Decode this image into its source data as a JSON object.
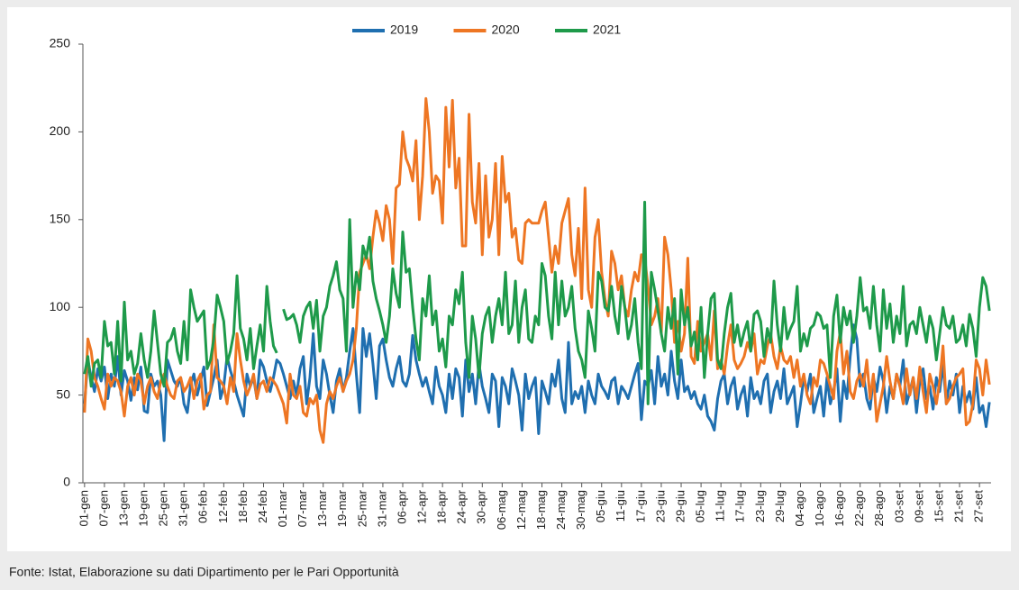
{
  "chart_data": {
    "type": "line",
    "source": "Fonte: Istat, Elaborazione su dati Dipartimento per le Pari Opportunità",
    "legend": "top",
    "grid": false,
    "ylim": [
      0,
      250
    ],
    "yticks": [
      0,
      50,
      100,
      150,
      200,
      250
    ],
    "categories": [
      "01-gen",
      null,
      null,
      null,
      null,
      null,
      "07-gen",
      null,
      null,
      null,
      null,
      null,
      "13-gen",
      null,
      null,
      null,
      null,
      null,
      "19-gen",
      null,
      null,
      null,
      null,
      null,
      "25-gen",
      null,
      null,
      null,
      null,
      null,
      "31-gen",
      null,
      null,
      null,
      null,
      null,
      "06-feb",
      null,
      null,
      null,
      null,
      null,
      "12-feb",
      null,
      null,
      null,
      null,
      null,
      "18-feb",
      null,
      null,
      null,
      null,
      null,
      "24-feb",
      null,
      null,
      null,
      null,
      null,
      "01-mar",
      null,
      null,
      null,
      null,
      null,
      "07-mar",
      null,
      null,
      null,
      null,
      null,
      "13-mar",
      null,
      null,
      null,
      null,
      null,
      "19-mar",
      null,
      null,
      null,
      null,
      null,
      "25-mar",
      null,
      null,
      null,
      null,
      null,
      "31-mar",
      null,
      null,
      null,
      null,
      null,
      "06-apr",
      null,
      null,
      null,
      null,
      null,
      "12-apr",
      null,
      null,
      null,
      null,
      null,
      "18-apr",
      null,
      null,
      null,
      null,
      null,
      "24-apr",
      null,
      null,
      null,
      null,
      null,
      "30-apr",
      null,
      null,
      null,
      null,
      null,
      "06-mag",
      null,
      null,
      null,
      null,
      null,
      "12-mag",
      null,
      null,
      null,
      null,
      null,
      "18-mag",
      null,
      null,
      null,
      null,
      null,
      "24-mag",
      null,
      null,
      null,
      null,
      null,
      "30-mag",
      null,
      null,
      null,
      null,
      null,
      "05-giu",
      null,
      null,
      null,
      null,
      null,
      "11-giu",
      null,
      null,
      null,
      null,
      null,
      "17-giu",
      null,
      null,
      null,
      null,
      null,
      "23-giu",
      null,
      null,
      null,
      null,
      null,
      "29-giu",
      null,
      null,
      null,
      null,
      null,
      "05-lug",
      null,
      null,
      null,
      null,
      null,
      "11-lug",
      null,
      null,
      null,
      null,
      null,
      "17-lug",
      null,
      null,
      null,
      null,
      null,
      "23-lug",
      null,
      null,
      null,
      null,
      null,
      "29-lug",
      null,
      null,
      null,
      null,
      null,
      "04-ago",
      null,
      null,
      null,
      null,
      null,
      "10-ago",
      null,
      null,
      null,
      null,
      null,
      "16-ago",
      null,
      null,
      null,
      null,
      null,
      "22-ago",
      null,
      null,
      null,
      null,
      null,
      "28-ago",
      null,
      null,
      null,
      null,
      null,
      "03-set",
      null,
      null,
      null,
      null,
      null,
      "09-set",
      null,
      null,
      null,
      null,
      null,
      "15-set",
      null,
      null,
      null,
      null,
      null,
      "21-set",
      null,
      null,
      null,
      null,
      null,
      "27-set",
      null,
      null,
      null
    ],
    "series": [
      {
        "name": "2019",
        "color": "#1f6fb0",
        "values": [
          45,
          70,
          60,
          52,
          65,
          58,
          66,
          48,
          62,
          55,
          72,
          50,
          64,
          58,
          47,
          60,
          53,
          66,
          41,
          40,
          62,
          55,
          58,
          50,
          24,
          70,
          64,
          58,
          55,
          60,
          45,
          40,
          56,
          62,
          50,
          58,
          66,
          44,
          52,
          60,
          70,
          48,
          55,
          72,
          64,
          58,
          50,
          44,
          38,
          62,
          55,
          60,
          48,
          70,
          66,
          58,
          52,
          60,
          70,
          68,
          62,
          55,
          48,
          58,
          50,
          65,
          72,
          45,
          60,
          85,
          55,
          48,
          70,
          62,
          50,
          40,
          58,
          65,
          52,
          60,
          75,
          88,
          62,
          40,
          88,
          72,
          85,
          68,
          48,
          78,
          82,
          70,
          60,
          55,
          65,
          72,
          58,
          55,
          62,
          84,
          70,
          62,
          55,
          60,
          52,
          45,
          66,
          55,
          50,
          40,
          62,
          48,
          65,
          60,
          38,
          70,
          52,
          62,
          45,
          68,
          55,
          48,
          40,
          62,
          58,
          32,
          60,
          55,
          45,
          65,
          58,
          50,
          30,
          62,
          48,
          55,
          60,
          28,
          58,
          52,
          45,
          62,
          55,
          70,
          48,
          40,
          80,
          45,
          52,
          48,
          55,
          40,
          58,
          50,
          45,
          62,
          55,
          52,
          48,
          58,
          60,
          45,
          55,
          52,
          48,
          55,
          62,
          68,
          36,
          58,
          55,
          64,
          45,
          72,
          55,
          62,
          50,
          75,
          58,
          48,
          70,
          52,
          55,
          48,
          52,
          45,
          42,
          50,
          38,
          35,
          30,
          48,
          58,
          62,
          45,
          55,
          60,
          42,
          50,
          55,
          38,
          60,
          48,
          52,
          45,
          58,
          62,
          40,
          52,
          58,
          48,
          65,
          45,
          50,
          55,
          32,
          45,
          60,
          52,
          62,
          40,
          48,
          55,
          38,
          60,
          45,
          52,
          65,
          35,
          58,
          48,
          72,
          90,
          82,
          55,
          62,
          48,
          42,
          60,
          52,
          66,
          58,
          40,
          55,
          48,
          62,
          55,
          70,
          45,
          52,
          60,
          40,
          58,
          65,
          48,
          55,
          42,
          60,
          52,
          68,
          45,
          58,
          50,
          62,
          40,
          55,
          46,
          52,
          42,
          60,
          40,
          44,
          32,
          46
        ]
      },
      {
        "name": "2020",
        "color": "#ee7623",
        "values": [
          40,
          82,
          75,
          60,
          55,
          48,
          42,
          62,
          55,
          60,
          58,
          52,
          38,
          55,
          60,
          50,
          62,
          58,
          45,
          55,
          60,
          52,
          48,
          58,
          62,
          55,
          50,
          48,
          58,
          60,
          52,
          55,
          60,
          48,
          58,
          62,
          42,
          50,
          52,
          90,
          60,
          58,
          55,
          45,
          60,
          52,
          85,
          70,
          58,
          50,
          55,
          62,
          48,
          56,
          58,
          52,
          60,
          58,
          55,
          50,
          45,
          34,
          62,
          50,
          48,
          55,
          40,
          38,
          48,
          45,
          50,
          30,
          23,
          45,
          52,
          48,
          55,
          60,
          52,
          58,
          62,
          70,
          88,
          120,
          125,
          130,
          122,
          140,
          155,
          148,
          138,
          158,
          150,
          125,
          168,
          170,
          200,
          185,
          180,
          172,
          195,
          150,
          175,
          219,
          200,
          165,
          175,
          172,
          148,
          214,
          180,
          218,
          168,
          185,
          135,
          135,
          210,
          160,
          148,
          182,
          130,
          175,
          140,
          150,
          182,
          130,
          186,
          160,
          165,
          140,
          145,
          127,
          125,
          148,
          150,
          148,
          148,
          148,
          155,
          160,
          140,
          120,
          135,
          125,
          148,
          155,
          162,
          130,
          118,
          145,
          105,
          168,
          110,
          100,
          140,
          150,
          120,
          105,
          95,
          132,
          125,
          110,
          118,
          100,
          95,
          110,
          120,
          115,
          130,
          128,
          112,
          90,
          95,
          105,
          85,
          140,
          130,
          110,
          80,
          92,
          75,
          85,
          128,
          72,
          68,
          92,
          75,
          80,
          85,
          70,
          98,
          65,
          70,
          62,
          78,
          90,
          70,
          65,
          68,
          72,
          80,
          75,
          85,
          62,
          70,
          68,
          78,
          85,
          72,
          65,
          78,
          70,
          68,
          72,
          60,
          70,
          55,
          62,
          50,
          45,
          60,
          55,
          70,
          68,
          62,
          55,
          48,
          75,
          86,
          62,
          75,
          52,
          48,
          58,
          62,
          55,
          70,
          48,
          62,
          35,
          45,
          55,
          72,
          58,
          48,
          62,
          55,
          45,
          65,
          50,
          60,
          48,
          66,
          52,
          40,
          62,
          55,
          45,
          58,
          78,
          45,
          48,
          55,
          60,
          62,
          65,
          33,
          35,
          45,
          70,
          65,
          50,
          70,
          56
        ]
      },
      {
        "name": "2021",
        "color": "#1e9a4a",
        "values": [
          62,
          72,
          55,
          68,
          70,
          60,
          92,
          78,
          80,
          62,
          92,
          58,
          103,
          70,
          75,
          62,
          68,
          85,
          70,
          60,
          75,
          98,
          80,
          62,
          55,
          80,
          82,
          88,
          75,
          68,
          92,
          70,
          110,
          100,
          92,
          95,
          98,
          65,
          70,
          82,
          107,
          100,
          92,
          68,
          75,
          85,
          118,
          88,
          82,
          70,
          88,
          65,
          78,
          90,
          75,
          112,
          92,
          78,
          74,
          null,
          99,
          93,
          94,
          96,
          90,
          80,
          95,
          100,
          103,
          88,
          104,
          75,
          95,
          100,
          112,
          118,
          126,
          110,
          105,
          75,
          150,
          100,
          120,
          110,
          135,
          128,
          140,
          115,
          105,
          98,
          90,
          80,
          95,
          122,
          108,
          100,
          143,
          120,
          122,
          100,
          82,
          70,
          105,
          95,
          118,
          90,
          98,
          75,
          82,
          66,
          95,
          90,
          110,
          102,
          120,
          80,
          60,
          95,
          82,
          60,
          85,
          95,
          100,
          80,
          95,
          105,
          90,
          120,
          85,
          90,
          115,
          80,
          100,
          110,
          82,
          80,
          95,
          90,
          125,
          118,
          95,
          82,
          120,
          90,
          115,
          95,
          100,
          112,
          88,
          75,
          70,
          60,
          98,
          88,
          75,
          120,
          115,
          100,
          98,
          112,
          95,
          85,
          112,
          100,
          82,
          90,
          105,
          80,
          65,
          160,
          45,
          120,
          110,
          98,
          85,
          75,
          100,
          88,
          105,
          62,
          110,
          90,
          100,
          78,
          86,
          70,
          100,
          60,
          85,
          105,
          108,
          70,
          65,
          85,
          100,
          108,
          80,
          90,
          78,
          86,
          92,
          75,
          96,
          98,
          92,
          72,
          88,
          80,
          115,
          90,
          75,
          100,
          82,
          88,
          92,
          112,
          75,
          85,
          78,
          88,
          90,
          97,
          95,
          88,
          90,
          60,
          95,
          107,
          80,
          100,
          90,
          98,
          80,
          95,
          117,
          98,
          100,
          88,
          112,
          90,
          75,
          110,
          88,
          102,
          80,
          95,
          85,
          112,
          78,
          90,
          92,
          85,
          100,
          90,
          80,
          95,
          88,
          70,
          85,
          100,
          90,
          88,
          95,
          80,
          82,
          90,
          78,
          96,
          88,
          72,
          100,
          117,
          112,
          98
        ]
      }
    ]
  }
}
